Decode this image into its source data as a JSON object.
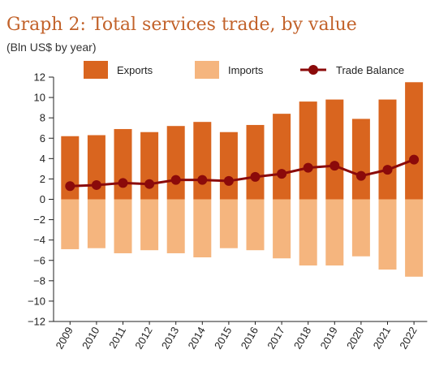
{
  "chart_data": {
    "type": "bar",
    "title": "Graph 2: Total services trade, by value",
    "subtitle": "(Bln US$ by year)",
    "categories": [
      "2009",
      "2010",
      "2011",
      "2012",
      "2013",
      "2014",
      "2015",
      "2016",
      "2017",
      "2018",
      "2019",
      "2020",
      "2021",
      "2022"
    ],
    "series": [
      {
        "name": "Exports",
        "type": "bar",
        "color": "#d9651f",
        "values": [
          6.2,
          6.3,
          6.9,
          6.6,
          7.2,
          7.6,
          6.6,
          7.3,
          8.4,
          9.6,
          9.8,
          7.9,
          9.8,
          11.5
        ]
      },
      {
        "name": "Imports",
        "type": "bar",
        "color": "#f5b57e",
        "values": [
          -4.9,
          -4.8,
          -5.3,
          -5.0,
          -5.3,
          -5.7,
          -4.8,
          -5.0,
          -5.8,
          -6.5,
          -6.5,
          -5.6,
          -6.9,
          -7.6
        ]
      },
      {
        "name": "Trade Balance",
        "type": "line",
        "color": "#8b0a0a",
        "values": [
          1.3,
          1.4,
          1.6,
          1.5,
          1.9,
          1.9,
          1.8,
          2.2,
          2.5,
          3.1,
          3.3,
          2.3,
          2.9,
          3.9
        ]
      }
    ],
    "ylim": [
      -12,
      12
    ],
    "yticks": [
      12,
      10,
      8,
      6,
      4,
      2,
      0,
      -2,
      -4,
      -6,
      -8,
      -10,
      -12
    ],
    "xlabel": "",
    "ylabel": "",
    "grid": false,
    "legend": "top"
  }
}
